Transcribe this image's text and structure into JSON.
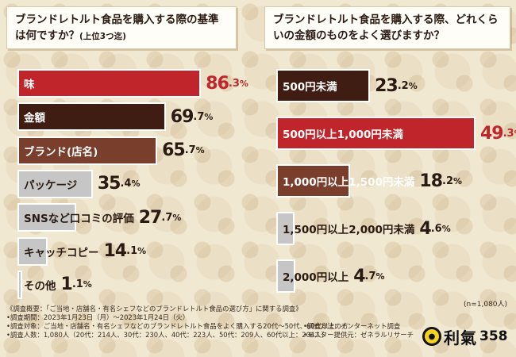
{
  "colors": {
    "red": "#c0252b",
    "dark_brown": "#3f1d12",
    "medium_brown": "#7a3e2c",
    "gray": "#c6c6c6",
    "value_red": "#c0252b",
    "value_dark": "#2a1a12"
  },
  "chart_data": [
    {
      "type": "bar",
      "orientation": "horizontal",
      "title": "ブランドレトルト食品を購入する際の基準は何ですか？",
      "title_note": "(上位3つ迄)",
      "categories": [
        "味",
        "金額",
        "ブランド(店名)",
        "パッケージ",
        "SNSなど口コミの評価",
        "キャッチコピー",
        "その他"
      ],
      "values": [
        86.3,
        69.7,
        65.7,
        35.4,
        27.7,
        14.1,
        1.1
      ],
      "unit": "%",
      "xlim": [
        0,
        100
      ]
    },
    {
      "type": "bar",
      "orientation": "horizontal",
      "title": "ブランドレトルト食品を購入する際、どれくらいの金額のものをよく選びますか？",
      "categories": [
        "500円未満",
        "500円以上1,000円未満",
        "1,000円以上1,500円未満",
        "1,500円以上2,000円未満",
        "2,000円以上"
      ],
      "values": [
        23.2,
        49.3,
        18.2,
        4.6,
        4.7
      ],
      "unit": "%",
      "xlim": [
        0,
        100
      ],
      "sample_note": "(n=1,080人)"
    }
  ],
  "footnotes": {
    "line1": "《調査概要：「ご当地・店舗名・有名シェフなどのブランドレトルト食品の選び方」に関する調査》",
    "line2": "•調査期間：2023年1月23日（月）〜2023年1月24日（火）",
    "line3": "•調査対象：ご当地・店舗名・有名シェフなどのブランドレトルト食品をよく購入する20代〜50代、60代以上の方",
    "line4": "•調査人数：1,080人（20代：214人、30代：230人、40代：223人、50代：209人、60代以上：204人）",
    "method": "•調査方法：インターネット調査",
    "provider": "•モニター提供元：ゼネラルリサーチ"
  },
  "logo": {
    "mark": "●",
    "word": "利氣",
    "num": "358"
  }
}
